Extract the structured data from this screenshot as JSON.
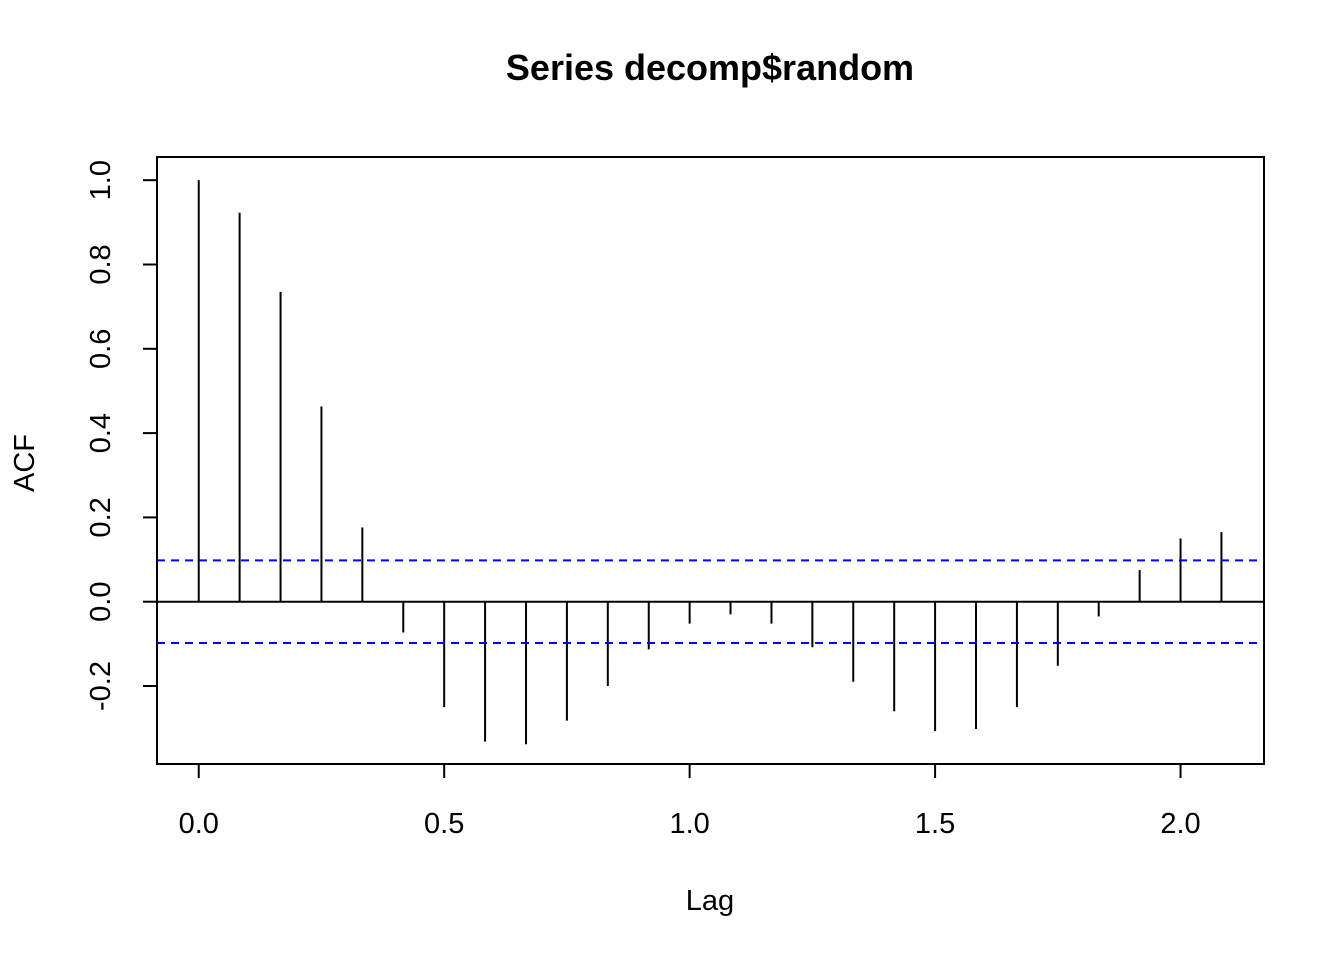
{
  "chart_data": {
    "type": "bar",
    "title": "Series  decomp$random",
    "xlabel": "Lag",
    "ylabel": "ACF",
    "xlim": [
      -0.085,
      2.17
    ],
    "ylim": [
      -0.385,
      1.055
    ],
    "x_ticks": [
      0.0,
      0.5,
      1.0,
      1.5,
      2.0
    ],
    "x_tick_labels": [
      "0.0",
      "0.5",
      "1.0",
      "1.5",
      "2.0"
    ],
    "y_ticks": [
      -0.2,
      0.0,
      0.2,
      0.4,
      0.6,
      0.8,
      1.0
    ],
    "y_tick_labels": [
      "-0.2",
      "0.0",
      "0.2",
      "0.4",
      "0.6",
      "0.8",
      "1.0"
    ],
    "lags": [
      0.0,
      0.0833,
      0.1667,
      0.25,
      0.3333,
      0.4167,
      0.5,
      0.5833,
      0.6667,
      0.75,
      0.8333,
      0.9167,
      1.0,
      1.0833,
      1.1667,
      1.25,
      1.3333,
      1.4167,
      1.5,
      1.5833,
      1.6667,
      1.75,
      1.8333,
      1.9167,
      2.0,
      2.0833
    ],
    "acf": [
      1.0,
      0.923,
      0.735,
      0.463,
      0.176,
      -0.073,
      -0.25,
      -0.332,
      -0.338,
      -0.282,
      -0.2,
      -0.113,
      -0.052,
      -0.03,
      -0.052,
      -0.108,
      -0.19,
      -0.26,
      -0.307,
      -0.302,
      -0.25,
      -0.152,
      -0.035,
      0.075,
      0.15,
      0.165
    ],
    "confidence_bound": 0.098,
    "colors": {
      "bars": "#000000",
      "confidence": "#0000ff",
      "zero_line": "#000000"
    }
  }
}
